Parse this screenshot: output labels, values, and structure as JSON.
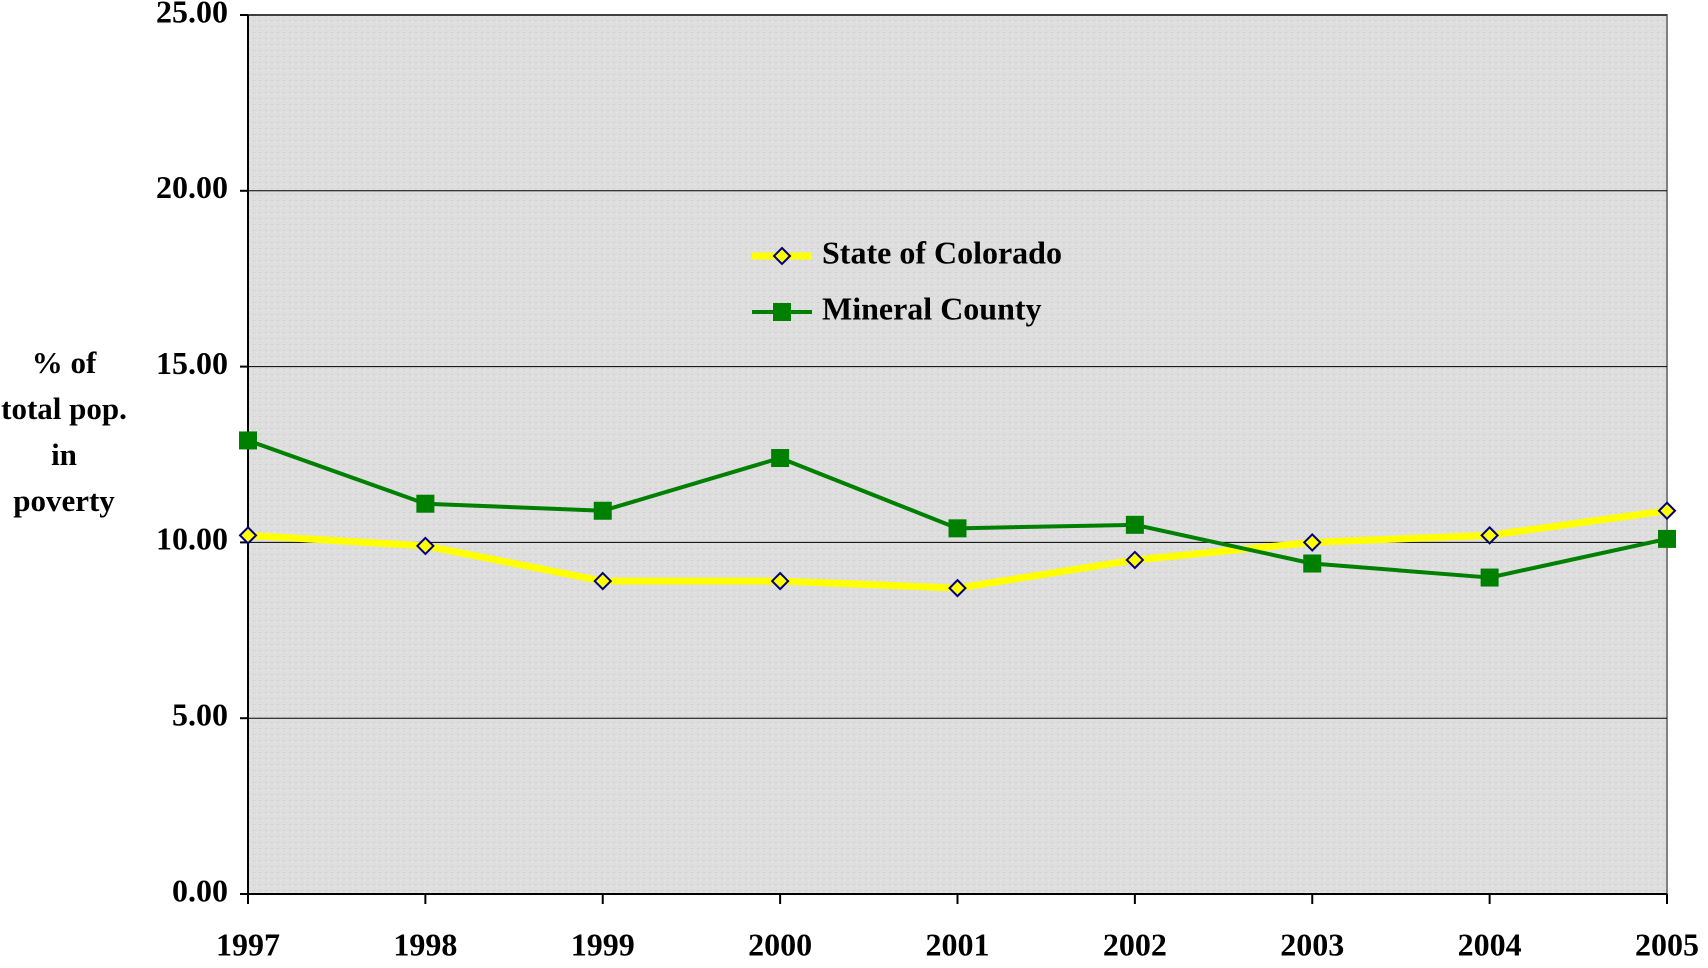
{
  "chart_data": {
    "type": "line",
    "y_label": "% of total pop. in poverty",
    "categories": [
      "1997",
      "1998",
      "1999",
      "2000",
      "2001",
      "2002",
      "2003",
      "2004",
      "2005"
    ],
    "series": [
      {
        "name": "State of Colorado",
        "color": "#ffff00",
        "marker": "diamond",
        "values": [
          10.2,
          9.9,
          8.9,
          8.9,
          8.7,
          9.5,
          10.0,
          10.2,
          10.9
        ]
      },
      {
        "name": "Mineral County",
        "color": "#008000",
        "marker": "square",
        "values": [
          12.9,
          11.1,
          10.9,
          12.4,
          10.4,
          10.5,
          9.4,
          9.0,
          10.1
        ]
      }
    ],
    "ylim": [
      0,
      25
    ],
    "yticks": [
      {
        "value": 0,
        "label": "0.00"
      },
      {
        "value": 5,
        "label": "5.00"
      },
      {
        "value": 10,
        "label": "10.00"
      },
      {
        "value": 15,
        "label": "15.00"
      },
      {
        "value": 20,
        "label": "20.00"
      },
      {
        "value": 25,
        "label": "25.00"
      }
    ],
    "grid": true,
    "legend": "top-center"
  }
}
